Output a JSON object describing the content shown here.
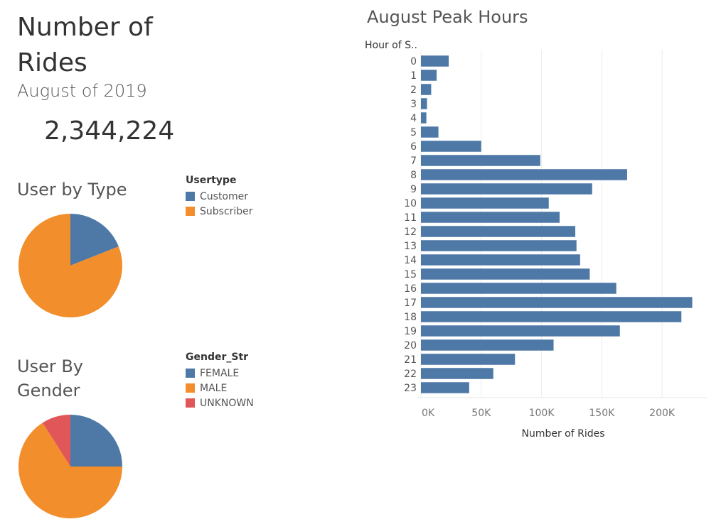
{
  "kpi": {
    "title": "Number of Rides",
    "subtitle": "August of 2019",
    "value": "2,344,224"
  },
  "user_type": {
    "title": "User by Type",
    "legend_title": "Usertype",
    "items": [
      {
        "label": "Customer",
        "color": "#4e79a7"
      },
      {
        "label": "Subscriber",
        "color": "#f28e2b"
      }
    ]
  },
  "gender": {
    "title": "User By Gender",
    "legend_title": "Gender_Str",
    "items": [
      {
        "label": "FEMALE",
        "color": "#4e79a7"
      },
      {
        "label": "MALE",
        "color": "#f28e2b"
      },
      {
        "label": "UNKNOWN",
        "color": "#e15759"
      }
    ]
  },
  "chart_data": [
    {
      "type": "bar",
      "orientation": "horizontal",
      "title": "August Peak Hours",
      "ylabel": "Hour of S..",
      "xlabel": "Number of Rides",
      "categories": [
        "0",
        "1",
        "2",
        "3",
        "4",
        "5",
        "6",
        "7",
        "8",
        "9",
        "10",
        "11",
        "12",
        "13",
        "14",
        "15",
        "16",
        "17",
        "18",
        "19",
        "20",
        "21",
        "22",
        "23"
      ],
      "values": [
        23000,
        13000,
        8500,
        5000,
        4500,
        14500,
        50000,
        99000,
        171000,
        142000,
        106000,
        115000,
        128000,
        129000,
        132000,
        140000,
        162000,
        225000,
        216000,
        165000,
        110000,
        78000,
        60000,
        40000
      ],
      "xlim": [
        0,
        230000
      ],
      "xticks": [
        "0K",
        "50K",
        "100K",
        "150K",
        "200K"
      ],
      "xtick_values": [
        0,
        50000,
        100000,
        150000,
        200000
      ],
      "bar_color": "#4e79a7",
      "grid": true
    },
    {
      "type": "pie",
      "title": "User by Type",
      "labels": [
        "Customer",
        "Subscriber"
      ],
      "values": [
        19,
        81
      ],
      "colors": [
        "#4e79a7",
        "#f28e2b"
      ]
    },
    {
      "type": "pie",
      "title": "User By Gender",
      "labels": [
        "FEMALE",
        "MALE",
        "UNKNOWN"
      ],
      "values": [
        25,
        66,
        9
      ],
      "colors": [
        "#4e79a7",
        "#f28e2b",
        "#e15759"
      ]
    }
  ]
}
